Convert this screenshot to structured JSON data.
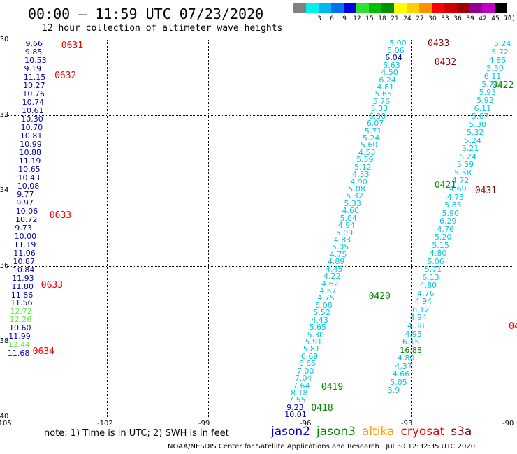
{
  "title": "00:00 – 11:59 UTC 07/23/2020",
  "subtitle": "12 hour collection of altimeter wave heights",
  "scale": {
    "unit": "(ft)",
    "bins": [
      {
        "label": "",
        "color": "#808080"
      },
      {
        "label": "3",
        "color": "#00f0f0"
      },
      {
        "label": "6",
        "color": "#00b8f0"
      },
      {
        "label": "9",
        "color": "#0070f0"
      },
      {
        "label": "12",
        "color": "#0000e0"
      },
      {
        "label": "15",
        "color": "#30e030"
      },
      {
        "label": "18",
        "color": "#00c000"
      },
      {
        "label": "21",
        "color": "#009000"
      },
      {
        "label": "24",
        "color": "#ffff00"
      },
      {
        "label": "27",
        "color": "#ffd000"
      },
      {
        "label": "30",
        "color": "#ff9000"
      },
      {
        "label": "33",
        "color": "#ff0000"
      },
      {
        "label": "36",
        "color": "#d00000"
      },
      {
        "label": "39",
        "color": "#a00000"
      },
      {
        "label": "42",
        "color": "#900090"
      },
      {
        "label": "45",
        "color": "#c000c0"
      },
      {
        "label": "70",
        "color": "#000000"
      }
    ]
  },
  "map": {
    "lon_min": -105,
    "lon_max": -90,
    "lat_min": -40,
    "lat_max": -30,
    "lon_ticks": [
      -105,
      -102,
      -99,
      -96,
      -93,
      -90
    ],
    "lat_ticks": [
      -30,
      -32,
      -34,
      -36,
      -38,
      -40
    ]
  },
  "colors": {
    "jason2": "#0000cc",
    "jason3": "#008800",
    "altika": "#ff9900",
    "cryosat": "#ee0000",
    "s3a": "#880000",
    "cyan": "#00c8e0",
    "darkblue": "#0000b0",
    "lightgreen": "#66ee44"
  },
  "tracks": [
    {
      "id": "track-west",
      "start_lon": -104.12,
      "end_lon": -104.65,
      "start_lat": -30.12,
      "end_lat": -38.32,
      "values": [
        "9.66",
        "9.85",
        "10.53",
        "9.19",
        "11.15",
        "10.27",
        "10.76",
        "10.74",
        "10.61",
        "10.30",
        "10.70",
        "10.81",
        "10.99",
        "10.88",
        "11.19",
        "10.65",
        "10.43",
        "10.08",
        "9.77",
        "9.97",
        "10.06",
        "10.72",
        "9.73",
        "10.00",
        "11.19",
        "11.06",
        "10.87",
        "10.84",
        "11.93",
        "11.80",
        "11.86",
        "11.56",
        "12.72",
        "12.26",
        "10.60",
        "11.99",
        "12.44",
        "11.68"
      ],
      "colors": [
        "darkblue",
        "darkblue",
        "darkblue",
        "darkblue",
        "darkblue",
        "darkblue",
        "darkblue",
        "darkblue",
        "darkblue",
        "darkblue",
        "darkblue",
        "darkblue",
        "darkblue",
        "darkblue",
        "darkblue",
        "darkblue",
        "darkblue",
        "darkblue",
        "darkblue",
        "darkblue",
        "darkblue",
        "darkblue",
        "darkblue",
        "darkblue",
        "darkblue",
        "darkblue",
        "darkblue",
        "darkblue",
        "darkblue",
        "darkblue",
        "darkblue",
        "darkblue",
        "lightgreen",
        "lightgreen",
        "darkblue",
        "darkblue",
        "lightgreen",
        "darkblue"
      ]
    },
    {
      "id": "track-main",
      "start_lon": -96.45,
      "end_lon": -93.35,
      "start_lat": -39.95,
      "end_lat": -30.1,
      "values": [
        "10.01",
        "9.23",
        "7.55",
        "8.18",
        "7.64",
        "7.04",
        "7.00",
        "6.65",
        "6.69",
        "5.81",
        "5.91",
        "5.30",
        "5.65",
        "4.43",
        "5.52",
        "5.08",
        "4.75",
        "4.57",
        "4.62",
        "4.22",
        "4.45",
        "4.89",
        "4.75",
        "5.05",
        "4.83",
        "5.09",
        "4.94",
        "5.04",
        "4.60",
        "5.33",
        "5.32",
        "5.08",
        "4.90",
        "4.33",
        "5.12",
        "5.59",
        "4.53",
        "5.60",
        "5.24",
        "5.71",
        "6.07",
        "6.30",
        "5.03",
        "5.76",
        "5.65",
        "4.81",
        "6.24",
        "4.50",
        "5.63",
        "6.04",
        "5.06",
        "5.00"
      ],
      "colors": [
        "darkblue",
        "darkblue",
        "cyan",
        "cyan",
        "cyan",
        "cyan",
        "cyan",
        "cyan",
        "cyan",
        "cyan",
        "cyan",
        "cyan",
        "cyan",
        "cyan",
        "cyan",
        "cyan",
        "cyan",
        "cyan",
        "cyan",
        "cyan",
        "cyan",
        "cyan",
        "cyan",
        "cyan",
        "cyan",
        "cyan",
        "cyan",
        "cyan",
        "cyan",
        "cyan",
        "cyan",
        "cyan",
        "cyan",
        "cyan",
        "cyan",
        "cyan",
        "cyan",
        "cyan",
        "cyan",
        "cyan",
        "cyan",
        "cyan",
        "cyan",
        "cyan",
        "cyan",
        "cyan",
        "cyan",
        "cyan",
        "cyan",
        "darkblue",
        "cyan",
        "cyan"
      ]
    },
    {
      "id": "track-east",
      "start_lon": -90.25,
      "end_lon": -93.4,
      "start_lat": -30.12,
      "end_lat": -39.3,
      "values": [
        "5.24",
        "5.72",
        "4.85",
        "5.50",
        "6.11",
        "5.72",
        "5.93",
        "5.92",
        "6.11",
        "5.67",
        "5.30",
        "5.32",
        "5.24",
        "5.21",
        "5.24",
        "5.59",
        "5.58",
        "4.72",
        "4.69",
        "4.73",
        "5.85",
        "5.90",
        "6.29",
        "4.76",
        "5.20",
        "5.15",
        "4.80",
        "5.06",
        "5.71",
        "6.13",
        "4.80",
        "4.76",
        "4.94",
        "6.12",
        "4.94",
        "4.38",
        "4.95",
        "6.15",
        "16.88",
        "4.80",
        "4.37",
        "4.66",
        "5.05",
        "3.9"
      ],
      "colors": [
        "cyan",
        "cyan",
        "cyan",
        "cyan",
        "cyan",
        "cyan",
        "cyan",
        "cyan",
        "cyan",
        "cyan",
        "cyan",
        "cyan",
        "cyan",
        "cyan",
        "cyan",
        "cyan",
        "cyan",
        "cyan",
        "cyan",
        "cyan",
        "cyan",
        "cyan",
        "cyan",
        "cyan",
        "cyan",
        "cyan",
        "cyan",
        "cyan",
        "cyan",
        "cyan",
        "cyan",
        "cyan",
        "cyan",
        "cyan",
        "cyan",
        "cyan",
        "cyan",
        "cyan",
        "jason3",
        "cyan",
        "cyan",
        "cyan",
        "cyan",
        "cyan"
      ]
    }
  ],
  "time_labels": [
    {
      "text": "0631",
      "lon": -103.35,
      "lat": -30.15,
      "color": "cryosat"
    },
    {
      "text": "0632",
      "lon": -103.55,
      "lat": -30.95,
      "color": "cryosat"
    },
    {
      "text": "0633",
      "lon": -103.7,
      "lat": -34.65,
      "color": "cryosat"
    },
    {
      "text": "0633",
      "lon": -103.95,
      "lat": -36.5,
      "color": "cryosat"
    },
    {
      "text": "0634",
      "lon": -104.2,
      "lat": -38.25,
      "color": "cryosat"
    },
    {
      "text": "0433",
      "lon": -92.5,
      "lat": -30.1,
      "color": "s3a"
    },
    {
      "text": "0432",
      "lon": -92.3,
      "lat": -30.6,
      "color": "s3a"
    },
    {
      "text": "0422",
      "lon": -90.6,
      "lat": -31.2,
      "color": "jason3"
    },
    {
      "text": "0421",
      "lon": -92.3,
      "lat": -33.85,
      "color": "jason3"
    },
    {
      "text": "0431",
      "lon": -91.1,
      "lat": -34.0,
      "color": "s3a"
    },
    {
      "text": "0420",
      "lon": -94.25,
      "lat": -36.8,
      "color": "jason3"
    },
    {
      "text": "0419",
      "lon": -95.65,
      "lat": -39.2,
      "color": "jason3"
    },
    {
      "text": "0418",
      "lon": -95.95,
      "lat": -39.75,
      "color": "jason3"
    },
    {
      "text": "04",
      "lon": -90.1,
      "lat": -37.6,
      "color": "cryosat"
    }
  ],
  "note": "note: 1) Time is in UTC; 2) SWH is in feet",
  "legend": [
    {
      "name": "jason2",
      "color": "jason2"
    },
    {
      "name": "jason3",
      "color": "jason3"
    },
    {
      "name": "altika",
      "color": "altika"
    },
    {
      "name": "cryosat",
      "color": "cryosat"
    },
    {
      "name": "s3a",
      "color": "s3a"
    }
  ],
  "footer": "NOAA/NESDIS Center for Satellite Applications and Research   Jul 30 12:32:35 UTC 2020"
}
